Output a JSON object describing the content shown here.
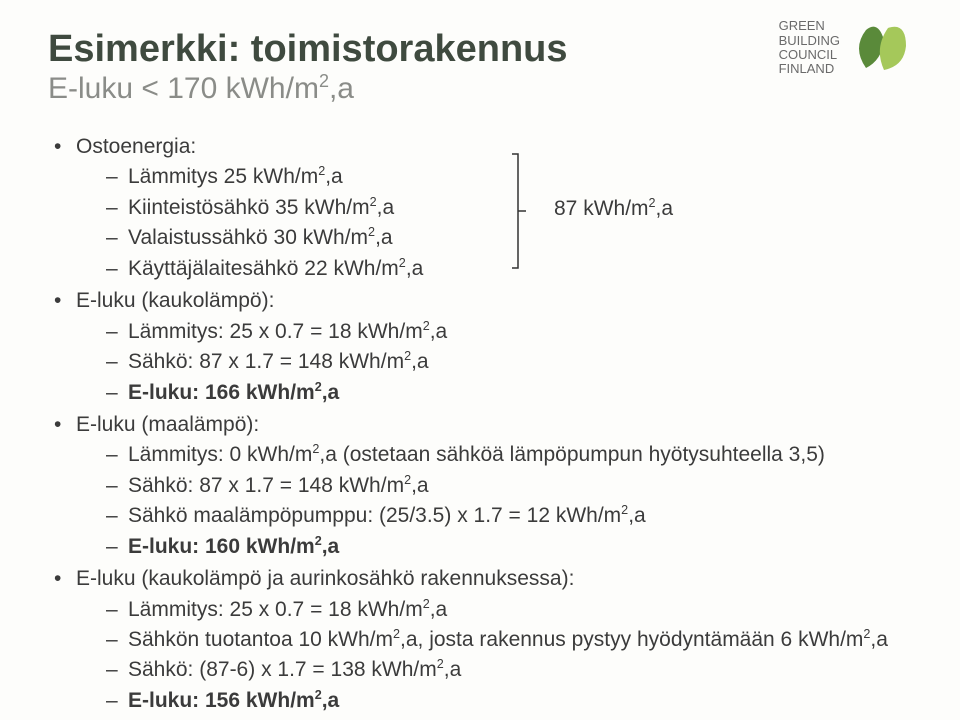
{
  "logo": {
    "line1": "GREEN",
    "line2": "BUILDING",
    "line3": "COUNCIL",
    "line4": "FINLAND",
    "leaf_dark": "#5a8a3a",
    "leaf_light": "#a5c85a"
  },
  "title": "Esimerkki: toimistorakennus",
  "subtitle_prefix": "E-luku < 170 kWh/m",
  "subtitle_suffix": ",a",
  "bracket_label_prefix": "87 kWh/m",
  "bracket_label_suffix": ",a",
  "sections": {
    "ostoenergia": {
      "label": "Ostoenergia:",
      "items": [
        {
          "pre": "Lämmitys 25 kWh/m",
          "suf": ",a"
        },
        {
          "pre": "Kiinteistösähkö 35 kWh/m",
          "suf": ",a"
        },
        {
          "pre": "Valaistussähkö 30 kWh/m",
          "suf": ",a"
        },
        {
          "pre": "Käyttäjälaitesähkö 22 kWh/m",
          "suf": ",a"
        }
      ]
    },
    "kaukolampo": {
      "label": "E-luku (kaukolämpö):",
      "items": [
        {
          "pre": "Lämmitys: 25 x 0.7 = 18 kWh/m",
          "suf": ",a"
        },
        {
          "pre": "Sähkö: 87 x 1.7 = 148 kWh/m",
          "suf": ",a"
        },
        {
          "pre": "E-luku: 166 kWh/m",
          "suf": ",a",
          "bold": true
        }
      ]
    },
    "maalampo": {
      "label": "E-luku (maalämpö):",
      "items": [
        {
          "pre": "Lämmitys: 0 kWh/m",
          "suf": ",a (ostetaan sähköä lämpöpumpun hyötysuhteella 3,5)"
        },
        {
          "pre": "Sähkö: 87 x 1.7 = 148 kWh/m",
          "suf": ",a"
        },
        {
          "pre": "Sähkö maalämpöpumppu: (25/3.5) x 1.7 = 12 kWh/m",
          "suf": ",a"
        },
        {
          "pre": "E-luku: 160 kWh/m",
          "suf": ",a",
          "bold": true
        }
      ]
    },
    "aurinko": {
      "label": "E-luku (kaukolämpö ja aurinkosähkö rakennuksessa):",
      "items": [
        {
          "pre": "Lämmitys: 25 x 0.7 = 18 kWh/m",
          "suf": ",a"
        },
        {
          "pre": "Sähkön tuotantoa 10 kWh/m",
          "suf": ",a, josta rakennus pystyy hyödyntämään 6 kWh/m",
          "suf2": ",a"
        },
        {
          "pre": "Sähkö: (87-6) x 1.7 = 138 kWh/m",
          "suf": ",a"
        },
        {
          "pre": "E-luku: 156 kWh/m",
          "suf": ",a",
          "bold": true
        }
      ]
    }
  }
}
